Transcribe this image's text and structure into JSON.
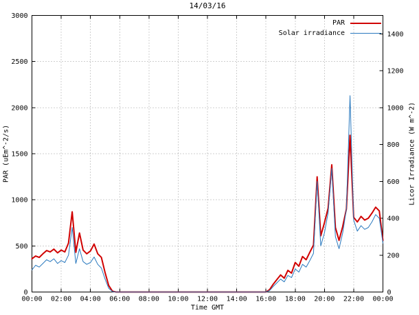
{
  "chart_data": {
    "type": "line",
    "title": "14/03/16",
    "x_axis": {
      "label": "Time GMT",
      "range": [
        0,
        24
      ],
      "start_hour": 0,
      "interval_hours": 0.25,
      "ticks": [
        {
          "v": 0,
          "label": "00:00"
        },
        {
          "v": 2,
          "label": "02:00"
        },
        {
          "v": 4,
          "label": "04:00"
        },
        {
          "v": 6,
          "label": "06:00"
        },
        {
          "v": 8,
          "label": "08:00"
        },
        {
          "v": 10,
          "label": "10:00"
        },
        {
          "v": 12,
          "label": "12:00"
        },
        {
          "v": 14,
          "label": "14:00"
        },
        {
          "v": 16,
          "label": "16:00"
        },
        {
          "v": 18,
          "label": "18:00"
        },
        {
          "v": 20,
          "label": "20:00"
        },
        {
          "v": 22,
          "label": "22:00"
        },
        {
          "v": 24,
          "label": "00:00"
        }
      ]
    },
    "left_axis": {
      "label": "PAR (uEm^-2/s)",
      "range": [
        0,
        3000
      ],
      "ticks": [
        0,
        500,
        1000,
        1500,
        2000,
        2500,
        3000
      ]
    },
    "right_axis": {
      "label": "Licor Irradiance (W m^-2)",
      "range": [
        0,
        1500
      ],
      "ticks": [
        0,
        200,
        400,
        600,
        800,
        1000,
        1200,
        1400
      ]
    },
    "grid": true,
    "legend_position": "top-right-inside",
    "series": [
      {
        "name": "PAR",
        "axis": "left",
        "color": "#d00000",
        "width": 2,
        "values": [
          360,
          390,
          375,
          415,
          450,
          435,
          465,
          425,
          455,
          435,
          530,
          870,
          430,
          640,
          455,
          415,
          445,
          520,
          415,
          375,
          210,
          70,
          10,
          0,
          0,
          0,
          0,
          0,
          0,
          0,
          0,
          0,
          0,
          0,
          0,
          0,
          0,
          0,
          0,
          0,
          0,
          0,
          0,
          0,
          0,
          0,
          0,
          0,
          0,
          0,
          0,
          0,
          0,
          0,
          0,
          0,
          0,
          0,
          0,
          0,
          0,
          0,
          0,
          0,
          0,
          25,
          85,
          135,
          185,
          150,
          235,
          205,
          320,
          280,
          385,
          350,
          430,
          510,
          1250,
          610,
          750,
          910,
          1380,
          700,
          560,
          710,
          900,
          1700,
          810,
          760,
          820,
          780,
          800,
          855,
          920,
          880,
          560
        ]
      },
      {
        "name": "Solar irradiance",
        "axis": "right",
        "color": "#2878be",
        "width": 1,
        "values": [
          120,
          145,
          135,
          155,
          175,
          165,
          180,
          155,
          170,
          160,
          200,
          350,
          155,
          235,
          165,
          150,
          160,
          190,
          150,
          130,
          70,
          20,
          3,
          0,
          0,
          0,
          0,
          0,
          0,
          0,
          0,
          0,
          0,
          0,
          0,
          0,
          0,
          0,
          0,
          0,
          0,
          0,
          0,
          0,
          0,
          0,
          0,
          0,
          0,
          0,
          0,
          0,
          0,
          0,
          0,
          0,
          0,
          0,
          0,
          0,
          0,
          0,
          0,
          0,
          0,
          8,
          30,
          50,
          70,
          55,
          90,
          78,
          125,
          108,
          150,
          135,
          170,
          210,
          600,
          250,
          320,
          430,
          670,
          300,
          235,
          320,
          450,
          1065,
          390,
          330,
          360,
          340,
          350,
          380,
          420,
          400,
          265
        ]
      }
    ]
  }
}
